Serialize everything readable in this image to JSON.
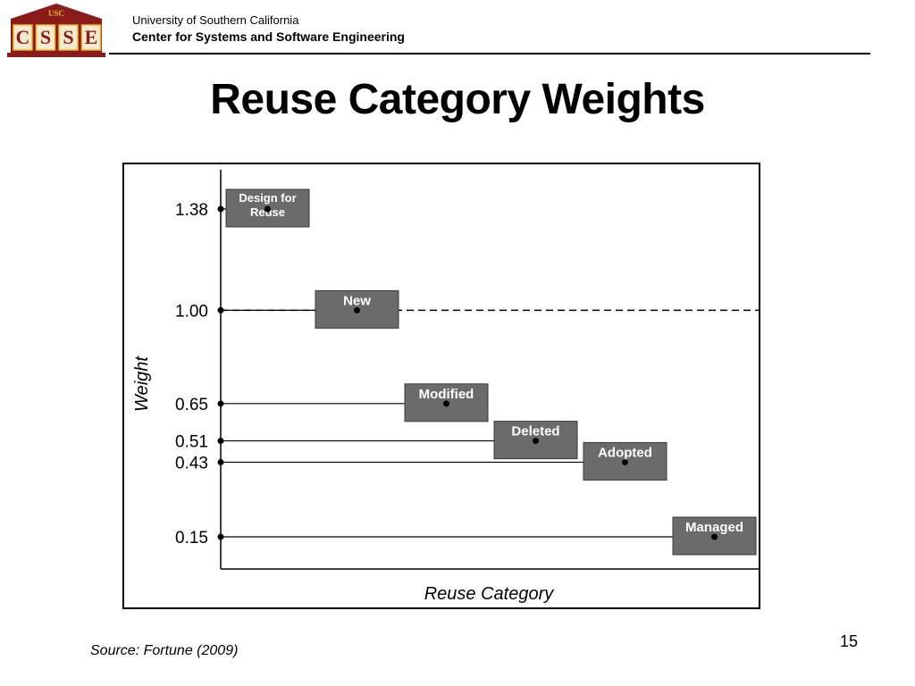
{
  "header": {
    "university": "University of Southern California",
    "center": "Center for Systems and Software Engineering",
    "logo": {
      "top_text": "USC",
      "letters": [
        "C",
        "S",
        "S",
        "E"
      ],
      "colors": {
        "maroon": "#8b1a1a",
        "gold": "#e8b830",
        "letter_bg": "#f3ead0"
      }
    }
  },
  "slide": {
    "title": "Reuse Category Weights",
    "source": "Source: Fortune (2009)",
    "page_number": "15"
  },
  "chart_data": {
    "type": "scatter",
    "xlabel": "Reuse Category",
    "ylabel": "Weight",
    "categories": [
      "Design for Reuse",
      "New",
      "Modified",
      "Deleted",
      "Adopted",
      "Managed"
    ],
    "values": [
      1.38,
      1.0,
      0.65,
      0.51,
      0.43,
      0.15
    ],
    "ytick_labels": [
      "1.38",
      "1.00",
      "0.65",
      "0.51",
      "0.43",
      "0.15"
    ],
    "reference_line": {
      "y": 1.0,
      "style": "dashed"
    },
    "grid": false,
    "colors": {
      "box_fill": "#6b6b6b",
      "box_text": "#ffffff",
      "line": "#000000"
    }
  }
}
